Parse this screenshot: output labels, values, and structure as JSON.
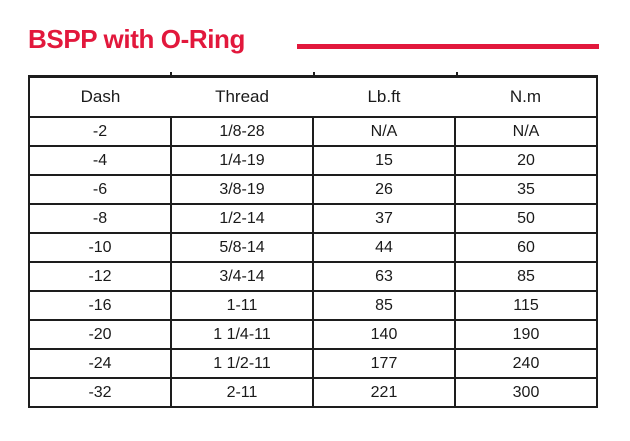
{
  "title": "BSPP with O-Ring",
  "accent_color": "#e2183c",
  "table": {
    "columns": [
      "Dash",
      "Thread",
      "Lb.ft",
      "N.m"
    ],
    "rows": [
      [
        "-2",
        "1/8-28",
        "N/A",
        "N/A"
      ],
      [
        "-4",
        "1/4-19",
        "15",
        "20"
      ],
      [
        "-6",
        "3/8-19",
        "26",
        "35"
      ],
      [
        "-8",
        "1/2-14",
        "37",
        "50"
      ],
      [
        "-10",
        "5/8-14",
        "44",
        "60"
      ],
      [
        "-12",
        "3/4-14",
        "63",
        "85"
      ],
      [
        "-16",
        "1-11",
        "85",
        "115"
      ],
      [
        "-20",
        "1 1/4-11",
        "140",
        "190"
      ],
      [
        "-24",
        "1 1/2-11",
        "177",
        "240"
      ],
      [
        "-32",
        "2-11",
        "221",
        "300"
      ]
    ]
  }
}
